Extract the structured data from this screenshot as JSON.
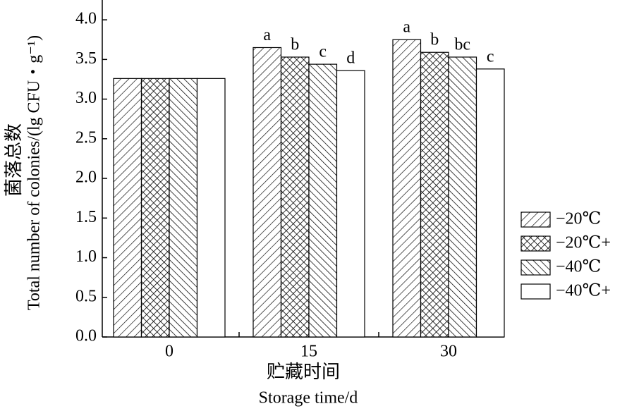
{
  "chart_data": {
    "type": "bar",
    "y_label_cn": "菌落总数",
    "y_label": "Total number of colonies/(lg CFU・g⁻¹)",
    "x_label_cn": "贮藏时间",
    "x_label": "Storage time/d",
    "categories": [
      "0",
      "15",
      "30"
    ],
    "series": [
      {
        "name": "−20℃",
        "color": "#000000",
        "pattern": "hatch-forward",
        "values": [
          3.26,
          3.65,
          3.75
        ],
        "letters": [
          null,
          "a",
          "a"
        ]
      },
      {
        "name": "−20℃+",
        "color": "#000000",
        "pattern": "crosshatch",
        "values": [
          3.26,
          3.53,
          3.59
        ],
        "letters": [
          null,
          "b",
          "b"
        ]
      },
      {
        "name": "−40℃",
        "color": "#000000",
        "pattern": "hatch-backward",
        "values": [
          3.26,
          3.44,
          3.53
        ],
        "letters": [
          null,
          "c",
          "bc"
        ]
      },
      {
        "name": "−40℃+",
        "color": "#000000",
        "pattern": "none",
        "values": [
          3.26,
          3.36,
          3.38
        ],
        "letters": [
          null,
          "d",
          "c"
        ]
      }
    ],
    "ylim": [
      0,
      4.25
    ],
    "yticks": [
      {
        "value": 0,
        "label": "0.0"
      },
      {
        "value": 0.5,
        "label": "0.5"
      },
      {
        "value": 1,
        "label": "1.0"
      },
      {
        "value": 1.5,
        "label": "1.5"
      },
      {
        "value": 2,
        "label": "2.0"
      },
      {
        "value": 2.5,
        "label": "2.5"
      },
      {
        "value": 3,
        "label": "3.0"
      },
      {
        "value": 3.5,
        "label": "3.5"
      },
      {
        "value": 4,
        "label": "4.0"
      }
    ],
    "legend": "right"
  }
}
